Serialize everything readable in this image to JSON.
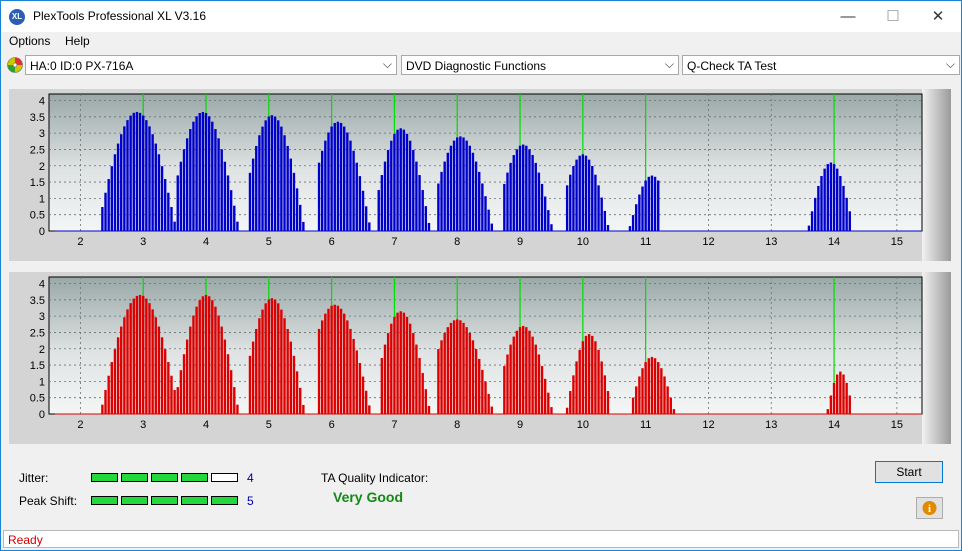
{
  "window": {
    "title": "PlexTools Professional XL V3.16",
    "app_icon_text": "XL",
    "minimize": "—",
    "maximize": "☐",
    "close": "✕"
  },
  "menu": {
    "items": [
      "Options",
      "Help"
    ]
  },
  "toolbar": {
    "drive": "HA:0 ID:0  PX-716A",
    "function": "DVD Diagnostic Functions",
    "test": "Q-Check TA Test",
    "dropdown_arrow": "⌵"
  },
  "chart_data": [
    {
      "type": "bar",
      "series_name": "",
      "color": "#0000cc",
      "xlim": [
        1.5,
        15.4
      ],
      "ylim": [
        0,
        4.2
      ],
      "x_ticks": [
        "2",
        "3",
        "4",
        "5",
        "6",
        "7",
        "8",
        "9",
        "10",
        "11",
        "12",
        "13",
        "14",
        "15"
      ],
      "y_ticks": [
        "0",
        "0.5",
        "1",
        "1.5",
        "2",
        "2.5",
        "3",
        "3.5",
        "4"
      ],
      "grid": true,
      "green_markers": [
        3,
        4,
        5,
        6,
        7,
        8,
        9,
        10,
        11,
        14
      ],
      "peaks": [
        {
          "center": 2.9,
          "height": 3.65,
          "start": 2.35,
          "end": 3.5
        },
        {
          "center": 3.95,
          "height": 3.65,
          "start": 3.55,
          "end": 4.5
        },
        {
          "center": 5.05,
          "height": 3.55,
          "start": 4.7,
          "end": 5.55
        },
        {
          "center": 6.1,
          "height": 3.35,
          "start": 5.8,
          "end": 6.6
        },
        {
          "center": 7.1,
          "height": 3.15,
          "start": 6.75,
          "end": 7.55
        },
        {
          "center": 8.05,
          "height": 2.9,
          "start": 7.7,
          "end": 8.55
        },
        {
          "center": 9.05,
          "height": 2.65,
          "start": 8.75,
          "end": 9.5
        },
        {
          "center": 10.0,
          "height": 2.35,
          "start": 9.75,
          "end": 10.4
        },
        {
          "center": 11.1,
          "height": 1.7,
          "start": 10.75,
          "end": 11.2
        },
        {
          "center": 13.95,
          "height": 2.1,
          "start": 13.6,
          "end": 14.25
        }
      ]
    },
    {
      "type": "bar",
      "series_name": "",
      "color": "#dd0000",
      "xlim": [
        1.5,
        15.4
      ],
      "ylim": [
        0,
        4.2
      ],
      "x_ticks": [
        "2",
        "3",
        "4",
        "5",
        "6",
        "7",
        "8",
        "9",
        "10",
        "11",
        "12",
        "13",
        "14",
        "15"
      ],
      "y_ticks": [
        "0",
        "0.5",
        "1",
        "1.5",
        "2",
        "2.5",
        "3",
        "3.5",
        "4"
      ],
      "grid": true,
      "green_markers": [
        3,
        4,
        5,
        6,
        7,
        8,
        9,
        10,
        11,
        14
      ],
      "peaks": [
        {
          "center": 2.95,
          "height": 3.65,
          "start": 2.35,
          "end": 3.55
        },
        {
          "center": 4.0,
          "height": 3.65,
          "start": 3.55,
          "end": 4.5
        },
        {
          "center": 5.05,
          "height": 3.55,
          "start": 4.7,
          "end": 5.55
        },
        {
          "center": 6.05,
          "height": 3.35,
          "start": 5.8,
          "end": 6.6
        },
        {
          "center": 7.1,
          "height": 3.15,
          "start": 6.8,
          "end": 7.55
        },
        {
          "center": 8.0,
          "height": 2.9,
          "start": 7.7,
          "end": 8.55
        },
        {
          "center": 9.05,
          "height": 2.7,
          "start": 8.75,
          "end": 9.5
        },
        {
          "center": 10.1,
          "height": 2.45,
          "start": 9.75,
          "end": 10.4
        },
        {
          "center": 11.1,
          "height": 1.75,
          "start": 10.8,
          "end": 11.45
        },
        {
          "center": 14.1,
          "height": 1.3,
          "start": 13.9,
          "end": 14.25
        }
      ]
    }
  ],
  "metrics": {
    "jitter": {
      "label": "Jitter:",
      "value": "4",
      "level": 4,
      "max": 5
    },
    "peak_shift": {
      "label": "Peak Shift:",
      "value": "5",
      "level": 5,
      "max": 5
    }
  },
  "quality": {
    "label": "TA Quality Indicator:",
    "value": "Very Good"
  },
  "start_button": "Start",
  "info_icon": "i",
  "status": "Ready"
}
